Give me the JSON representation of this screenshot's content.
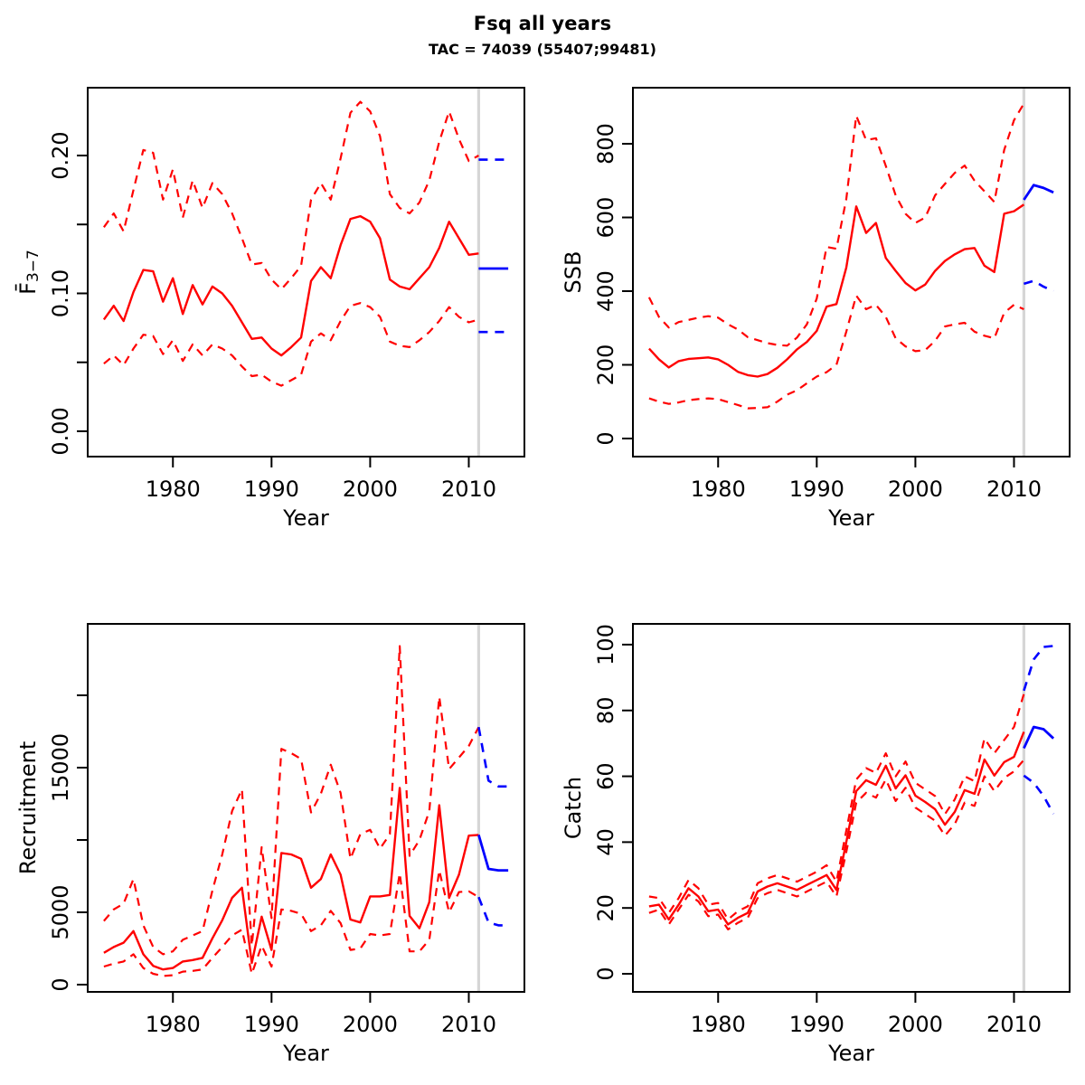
{
  "title": "Fsq all years",
  "subtitle": "TAC = 74039 (55407;99481)",
  "colors": {
    "median": "#FF0000",
    "interval": "#FF0000",
    "forecast": "#0000FF",
    "forecast_interval": "#0000FF",
    "divider": "#D6D6D6",
    "axis": "#000000",
    "background": "#FFFFFF"
  },
  "x": {
    "label": "Year",
    "lim": [
      1971.36,
      2015.64
    ],
    "ticks": [
      1980,
      1990,
      2000,
      2010
    ]
  },
  "divider_year": 2011,
  "years": [
    1973,
    1974,
    1975,
    1976,
    1977,
    1978,
    1979,
    1980,
    1981,
    1982,
    1983,
    1984,
    1985,
    1986,
    1987,
    1988,
    1989,
    1990,
    1991,
    1992,
    1993,
    1994,
    1995,
    1996,
    1997,
    1998,
    1999,
    2000,
    2001,
    2002,
    2003,
    2004,
    2005,
    2006,
    2007,
    2008,
    2009,
    2010,
    2011
  ],
  "forecast_years": [
    2011,
    2012,
    2013,
    2014
  ],
  "chart_data": [
    {
      "type": "line",
      "key": "fbar",
      "ylabel": "F̄3−7",
      "ylabel_main": "F̄",
      "ylabel_sub": "3−7",
      "ylim": [
        -0.0184,
        0.2492
      ],
      "yticks": [
        {
          "v": 0.0,
          "label": "0.00"
        },
        {
          "v": 0.05,
          "label": ""
        },
        {
          "v": 0.1,
          "label": "0.10"
        },
        {
          "v": 0.15,
          "label": ""
        },
        {
          "v": 0.2,
          "label": "0.20"
        }
      ],
      "series": {
        "median": [
          0.081,
          0.091,
          0.08,
          0.101,
          0.117,
          0.116,
          0.094,
          0.111,
          0.085,
          0.106,
          0.092,
          0.105,
          0.1,
          0.091,
          0.079,
          0.067,
          0.068,
          0.06,
          0.055,
          0.061,
          0.068,
          0.109,
          0.119,
          0.111,
          0.135,
          0.154,
          0.156,
          0.152,
          0.14,
          0.11,
          0.105,
          0.103,
          0.111,
          0.119,
          0.133,
          0.152,
          0.14,
          0.128,
          0.129
        ],
        "upper": [
          0.148,
          0.158,
          0.145,
          0.175,
          0.204,
          0.202,
          0.168,
          0.19,
          0.155,
          0.182,
          0.162,
          0.18,
          0.172,
          0.158,
          0.14,
          0.121,
          0.122,
          0.11,
          0.103,
          0.111,
          0.12,
          0.168,
          0.18,
          0.168,
          0.198,
          0.231,
          0.239,
          0.232,
          0.214,
          0.172,
          0.162,
          0.158,
          0.166,
          0.182,
          0.21,
          0.232,
          0.212,
          0.196,
          0.2
        ],
        "lower": [
          0.049,
          0.055,
          0.048,
          0.06,
          0.07,
          0.069,
          0.056,
          0.066,
          0.051,
          0.063,
          0.055,
          0.063,
          0.06,
          0.055,
          0.047,
          0.04,
          0.041,
          0.036,
          0.033,
          0.037,
          0.041,
          0.065,
          0.071,
          0.066,
          0.08,
          0.091,
          0.093,
          0.09,
          0.083,
          0.065,
          0.062,
          0.061,
          0.066,
          0.072,
          0.08,
          0.09,
          0.083,
          0.079,
          0.081
        ],
        "forecast_median": [
          0.118,
          0.118,
          0.118,
          0.118
        ],
        "forecast_upper": [
          0.197,
          0.197,
          0.197,
          0.197
        ],
        "forecast_lower": [
          0.072,
          0.072,
          0.072,
          0.072
        ]
      }
    },
    {
      "type": "line",
      "key": "ssb",
      "ylabel": "SSB",
      "ylabel_main": "SSB",
      "ylabel_sub": "",
      "ylim": [
        -49.1,
        952.2
      ],
      "yticks": [
        {
          "v": 0,
          "label": "0"
        },
        {
          "v": 200,
          "label": "200"
        },
        {
          "v": 400,
          "label": "400"
        },
        {
          "v": 600,
          "label": "600"
        },
        {
          "v": 800,
          "label": "800"
        }
      ],
      "series": {
        "median": [
          244,
          215,
          193,
          210,
          216,
          218,
          220,
          215,
          200,
          181,
          172,
          168,
          175,
          192,
          215,
          242,
          262,
          292,
          358,
          365,
          464,
          630,
          558,
          585,
          490,
          455,
          422,
          402,
          418,
          455,
          482,
          500,
          514,
          517,
          469,
          452,
          610,
          617,
          635
        ],
        "upper": [
          383,
          330,
          301,
          316,
          322,
          328,
          332,
          328,
          310,
          296,
          275,
          267,
          259,
          254,
          252,
          274,
          310,
          380,
          520,
          515,
          650,
          876,
          810,
          815,
          740,
          660,
          610,
          585,
          600,
          660,
          691,
          721,
          741,
          700,
          671,
          642,
          783,
          864,
          909
        ],
        "lower": [
          109,
          100,
          94,
          98,
          104,
          107,
          109,
          107,
          99,
          91,
          82,
          83,
          85,
          100,
          119,
          131,
          150,
          168,
          180,
          200,
          290,
          388,
          351,
          363,
          330,
          272,
          250,
          237,
          240,
          265,
          304,
          310,
          314,
          290,
          279,
          272,
          341,
          363,
          351
        ],
        "forecast_median": [
          648,
          688,
          680,
          668
        ],
        "forecast_upper": null,
        "forecast_lower": [
          420,
          428,
          412,
          400
        ]
      }
    },
    {
      "type": "line",
      "key": "rec",
      "ylabel": "Recruitment",
      "ylabel_main": "Recruitment",
      "ylabel_sub": "",
      "ylim": [
        -500,
        24937
      ],
      "yticks": [
        {
          "v": 0,
          "label": "0"
        },
        {
          "v": 5000,
          "label": "5000"
        },
        {
          "v": 10000,
          "label": ""
        },
        {
          "v": 15000,
          "label": "15000"
        },
        {
          "v": 20000,
          "label": ""
        }
      ],
      "series": {
        "median": [
          2200,
          2600,
          2900,
          3700,
          2100,
          1300,
          1050,
          1150,
          1600,
          1700,
          1850,
          3200,
          4450,
          6000,
          6700,
          1500,
          4700,
          2400,
          9100,
          9000,
          8700,
          6700,
          7300,
          9000,
          7600,
          4500,
          4300,
          6100,
          6100,
          6200,
          13600,
          4750,
          3900,
          5700,
          12400,
          6000,
          7600,
          10300,
          10350
        ],
        "upper": [
          4400,
          5200,
          5600,
          7300,
          4100,
          2600,
          2100,
          2300,
          3100,
          3400,
          3700,
          6500,
          9000,
          12000,
          13500,
          2700,
          9500,
          4600,
          16300,
          16000,
          15600,
          11900,
          13200,
          15200,
          13250,
          8700,
          10400,
          10700,
          9400,
          10400,
          23400,
          8900,
          10000,
          12000,
          19900,
          14900,
          15700,
          16500,
          17800
        ],
        "lower": [
          1250,
          1450,
          1600,
          2100,
          1150,
          750,
          600,
          650,
          900,
          950,
          1050,
          1850,
          2600,
          3400,
          3800,
          750,
          2700,
          1250,
          5200,
          5100,
          4900,
          3700,
          4100,
          5100,
          4250,
          2400,
          2500,
          3500,
          3400,
          3500,
          7700,
          2300,
          2300,
          3100,
          7900,
          5000,
          6400,
          6450,
          6050
        ],
        "forecast_median": [
          10350,
          8000,
          7900,
          7900
        ],
        "forecast_upper": [
          17800,
          14100,
          13700,
          13700
        ],
        "forecast_lower": [
          6050,
          4300,
          4100,
          4100
        ]
      }
    },
    {
      "type": "line",
      "key": "catch",
      "ylabel": "Catch",
      "ylabel_main": "Catch",
      "ylabel_sub": "",
      "ylim": [
        -5.49,
        106.3
      ],
      "yticks": [
        {
          "v": 0,
          "label": "0"
        },
        {
          "v": 20,
          "label": "20"
        },
        {
          "v": 40,
          "label": "40"
        },
        {
          "v": 60,
          "label": "60"
        },
        {
          "v": 80,
          "label": "80"
        },
        {
          "v": 100,
          "label": "100"
        }
      ],
      "series": {
        "median": [
          20.5,
          21,
          16.5,
          21,
          26,
          23.5,
          19,
          19.5,
          15,
          17,
          18.5,
          25,
          26.5,
          27.5,
          26.5,
          25.5,
          27,
          28.5,
          30,
          25.5,
          40,
          55.5,
          58.8,
          57.4,
          63.2,
          56.3,
          60.3,
          54.1,
          52.2,
          50,
          45.3,
          49.2,
          55.8,
          54.7,
          65.1,
          60.2,
          64.3,
          65.9,
          73.5
        ],
        "upper": [
          23.5,
          23,
          18.5,
          23,
          28.5,
          26,
          21,
          21.5,
          16.5,
          19,
          20.5,
          27.5,
          29,
          30,
          29,
          28,
          29.5,
          31,
          33,
          28,
          43.5,
          59,
          62.5,
          61,
          67,
          60,
          64.5,
          58,
          56,
          54,
          48.5,
          53,
          60,
          58.5,
          71.5,
          67,
          71,
          75,
          85
        ],
        "lower": [
          18.5,
          19.5,
          15,
          19.5,
          24,
          22,
          17.5,
          18,
          13.5,
          15.5,
          17,
          23,
          24.5,
          25.5,
          24.5,
          23.5,
          25,
          26.5,
          28,
          23.5,
          37,
          52,
          55,
          53.5,
          59,
          52.5,
          56.5,
          50.5,
          48.5,
          46.5,
          42,
          45.5,
          52,
          51,
          60,
          55.5,
          59.5,
          61.5,
          65
        ],
        "forecast_median": [
          68.5,
          75,
          74.3,
          71.5
        ],
        "forecast_upper": [
          86,
          95.5,
          99.3,
          99.6
        ],
        "forecast_lower": [
          60.2,
          58,
          54,
          48.6
        ]
      }
    }
  ]
}
